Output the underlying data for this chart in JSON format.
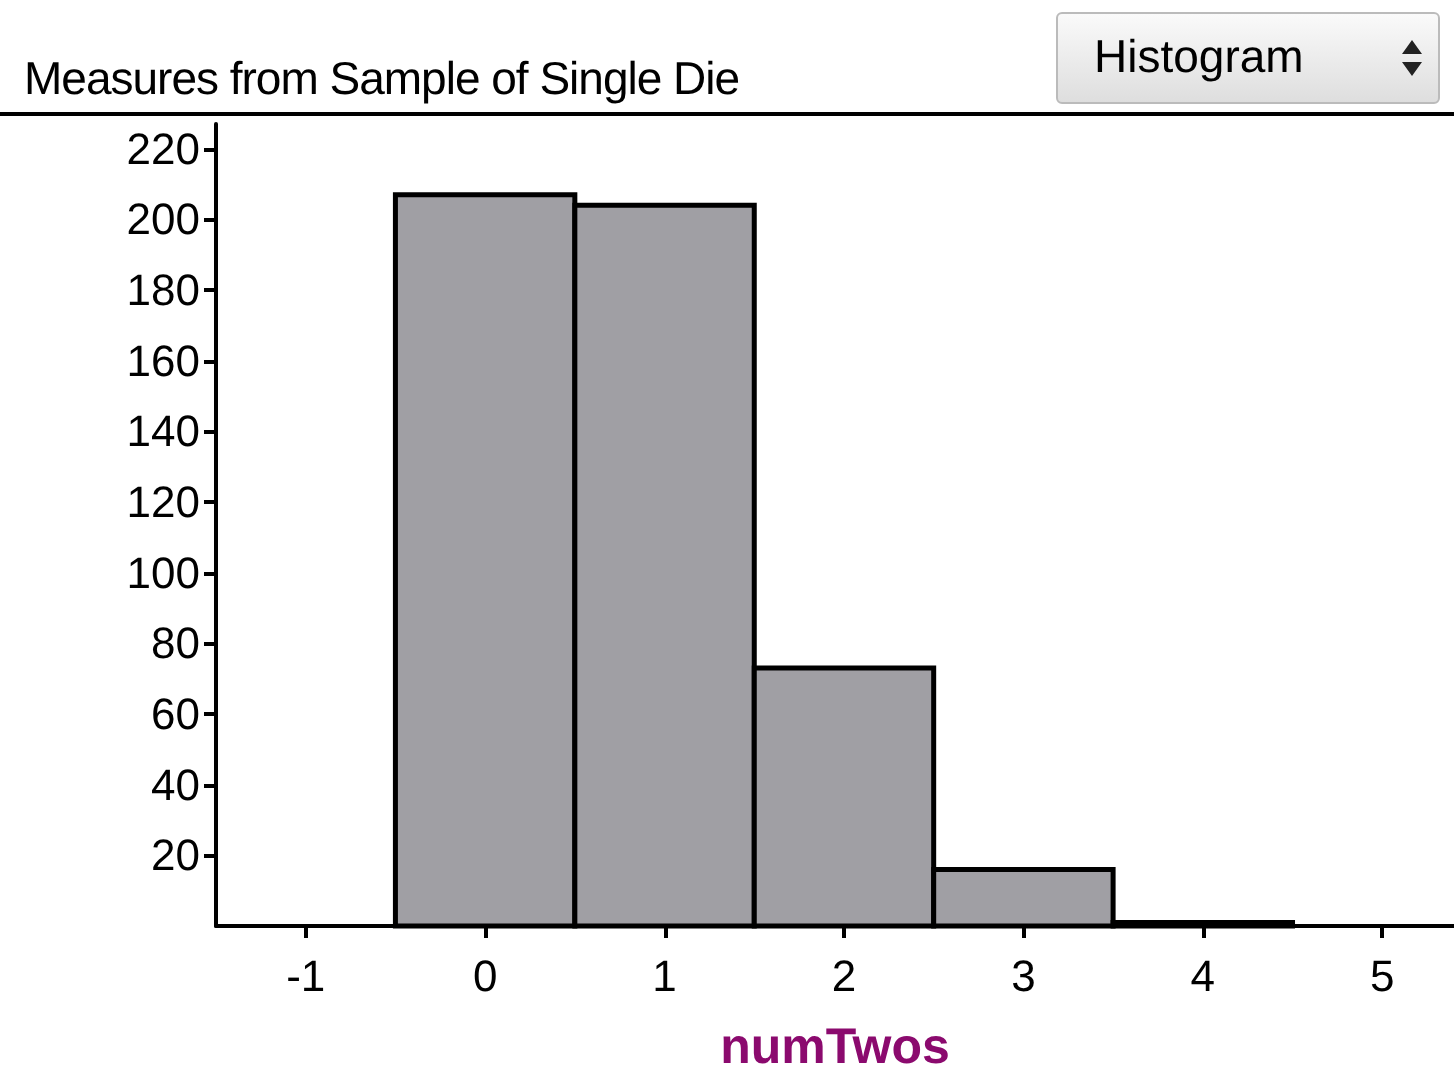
{
  "chart_data": {
    "type": "histogram",
    "title": "Measures from Sample of Single Die",
    "xlabel": "numTwos",
    "bins": [
      -0.5,
      0.5,
      1.5,
      2.5,
      3.5,
      4.5
    ],
    "values": [
      207,
      204,
      73,
      16,
      1
    ],
    "color": "#a09fa4",
    "xlim": [
      -1.5,
      5.4
    ],
    "xticks": [
      -1,
      0,
      1,
      2,
      3,
      4,
      5
    ],
    "ylim": [
      0,
      227
    ],
    "yticks": [
      20,
      40,
      60,
      80,
      100,
      120,
      140,
      160,
      180,
      200,
      220
    ],
    "grid": false,
    "annotations": [
      "Histogram"
    ]
  }
}
